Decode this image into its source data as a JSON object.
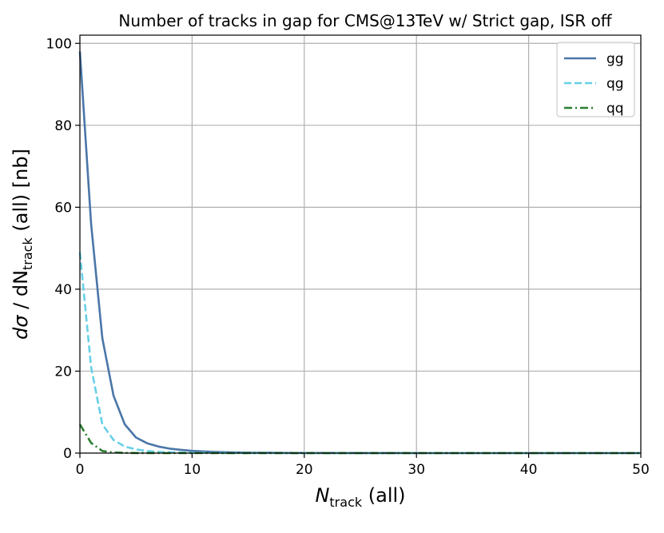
{
  "chart_data": {
    "type": "line",
    "title": "Number of tracks in gap for CMS@13TeV w/ Strict gap, ISR off",
    "xlabel": {
      "main": "N",
      "sub": "track",
      "rest": " (all)"
    },
    "ylabel": {
      "pre": "d",
      "sigma": "σ",
      "mid": " / dN",
      "sub": "track",
      "rest": " (all) [nb]"
    },
    "xlim": [
      0,
      50
    ],
    "ylim": [
      0,
      102
    ],
    "xticks": [
      0,
      10,
      20,
      30,
      40,
      50
    ],
    "yticks": [
      0,
      20,
      40,
      60,
      80,
      100
    ],
    "grid": true,
    "legend_position": "top-right",
    "x": [
      0,
      1,
      2,
      3,
      4,
      5,
      6,
      7,
      8,
      9,
      10,
      11,
      12,
      13,
      14,
      15,
      16,
      17,
      18,
      19,
      20,
      25,
      30,
      35,
      40,
      45,
      50
    ],
    "series": [
      {
        "name": "gg",
        "color": "#4a76a8",
        "style": "solid",
        "values": [
          98,
          56,
          28,
          14,
          7,
          3.8,
          2.4,
          1.6,
          1.1,
          0.8,
          0.55,
          0.4,
          0.3,
          0.22,
          0.16,
          0.12,
          0.09,
          0.07,
          0.05,
          0.04,
          0.03,
          0.01,
          0,
          0,
          0,
          0,
          0
        ]
      },
      {
        "name": "qg",
        "color": "#67d0e6",
        "style": "dashed",
        "values": [
          49,
          21,
          7,
          3.2,
          1.6,
          0.9,
          0.5,
          0.3,
          0.2,
          0.12,
          0.08,
          0.05,
          0.03,
          0.02,
          0.01,
          0.01,
          0,
          0,
          0,
          0,
          0,
          0,
          0,
          0,
          0,
          0,
          0
        ]
      },
      {
        "name": "qq",
        "color": "#2a7f30",
        "style": "dashdot",
        "values": [
          7,
          2.5,
          0.5,
          0.15,
          0.05,
          0.02,
          0.01,
          0,
          0,
          0,
          0,
          0,
          0,
          0,
          0,
          0,
          0,
          0,
          0,
          0,
          0,
          0,
          0,
          0,
          0,
          0,
          0
        ]
      }
    ]
  }
}
